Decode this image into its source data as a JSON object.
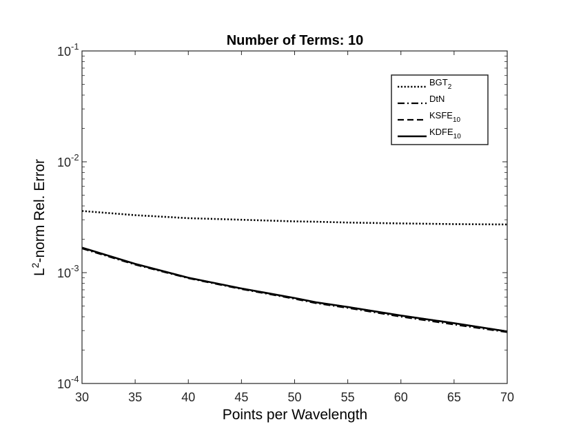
{
  "chart_data": {
    "type": "line",
    "title": "Number of Terms: 10",
    "xlabel": "Points per Wavelength",
    "ylabel": {
      "base": "L",
      "sup": "2",
      "rest": "-norm Rel. Error"
    },
    "xlim": [
      30,
      70
    ],
    "ylim": [
      0.0001,
      0.1
    ],
    "yscale": "log",
    "grid": false,
    "legend_position": "top-right",
    "xticks": [
      "30",
      "35",
      "40",
      "45",
      "50",
      "55",
      "60",
      "65",
      "70"
    ],
    "yticks": [
      {
        "base": "10",
        "exp": "-4"
      },
      {
        "base": "10",
        "exp": "-3"
      },
      {
        "base": "10",
        "exp": "-2"
      },
      {
        "base": "10",
        "exp": "-1"
      }
    ],
    "x": [
      30,
      35,
      40,
      45,
      50,
      52,
      55,
      60,
      65,
      70
    ],
    "series": [
      {
        "name": "BGT",
        "sub": "2",
        "dash": "dotted",
        "values": [
          0.0036,
          0.0033,
          0.0031,
          0.003,
          0.0029,
          0.00288,
          0.00283,
          0.00278,
          0.00274,
          0.00272
        ]
      },
      {
        "name": "DtN",
        "sub": "",
        "dash": "dashdot",
        "values": [
          0.00165,
          0.00118,
          0.00089,
          0.00071,
          0.00058,
          0.00053,
          0.00048,
          0.0004,
          0.00034,
          0.00029
        ]
      },
      {
        "name": "KSFE",
        "sub": "10",
        "dash": "dashed",
        "values": [
          0.00168,
          0.0012,
          0.0009,
          0.00072,
          0.00059,
          0.00054,
          0.00049,
          0.00041,
          0.00035,
          0.000295
        ]
      },
      {
        "name": "KDFE",
        "sub": "10",
        "dash": "solid",
        "values": [
          0.00168,
          0.0012,
          0.0009,
          0.00072,
          0.00059,
          0.00054,
          0.00049,
          0.00041,
          0.00035,
          0.000295
        ]
      }
    ]
  }
}
